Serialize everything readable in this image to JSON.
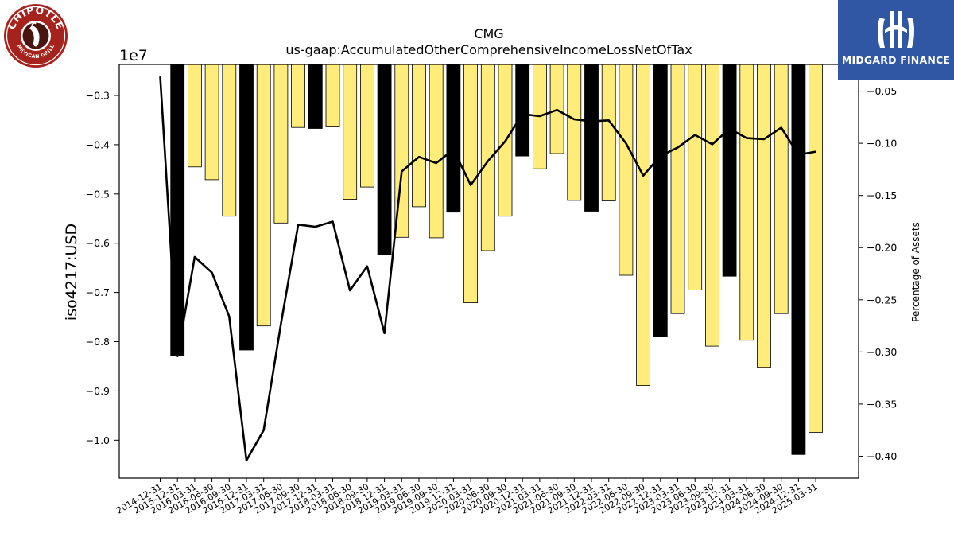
{
  "brand": {
    "left_logo_text": "CHIPOTLE",
    "left_logo_subtext": "MEXICAN GRILL",
    "right_logo_text": "MIDGARD FINANCE",
    "colors": {
      "bar_yellow": "#ffec7a",
      "bar_black": "#000000",
      "line": "#000000",
      "midgard_blue": "#2f57a4",
      "chipotle_red": "#a5231c"
    }
  },
  "chart_data": {
    "type": "bar",
    "title": "CMG",
    "subtitle": "us-gaap:AccumulatedOtherComprehensiveIncomeLossNetOfTax",
    "ylabel": "iso4217:USD",
    "y2label": "Percentage of Assets",
    "y_scale_label": "1e7",
    "ylim": [
      -1.077,
      -0.237
    ],
    "y2lim": [
      -0.421,
      -0.0244
    ],
    "y_ticks": [
      -0.3,
      -0.4,
      -0.5,
      -0.6,
      -0.7,
      -0.8,
      -0.9,
      -1.0
    ],
    "y_tick_labels": [
      "−0.3",
      "−0.4",
      "−0.5",
      "−0.6",
      "−0.7",
      "−0.8",
      "−0.9",
      "−1.0"
    ],
    "y2_ticks": [
      -0.05,
      -0.1,
      -0.15,
      -0.2,
      -0.25,
      -0.3,
      -0.35,
      -0.4
    ],
    "y2_tick_labels": [
      "−0.05",
      "−0.10",
      "−0.15",
      "−0.20",
      "−0.25",
      "−0.30",
      "−0.35",
      "−0.40"
    ],
    "categories": [
      "2014-12-31",
      "2015-12-31",
      "2016-03-31",
      "2016-06-30",
      "2016-09-30",
      "2016-12-31",
      "2017-03-31",
      "2017-06-30",
      "2017-09-30",
      "2017-12-31",
      "2018-03-31",
      "2018-06-30",
      "2018-09-30",
      "2018-12-31",
      "2019-03-31",
      "2019-06-30",
      "2019-09-30",
      "2019-12-31",
      "2020-03-31",
      "2020-06-30",
      "2020-09-30",
      "2020-12-31",
      "2021-03-31",
      "2021-06-30",
      "2021-09-30",
      "2021-12-31",
      "2022-03-31",
      "2022-06-30",
      "2022-09-30",
      "2022-12-31",
      "2023-03-31",
      "2023-06-30",
      "2023-09-30",
      "2023-12-31",
      "2024-03-31",
      "2024-06-30",
      "2024-09-30",
      "2024-12-31",
      "2025-03-31"
    ],
    "series": [
      {
        "name": "",
        "kind": "bar",
        "axis": "left",
        "values": [
          null,
          -0.829,
          -0.445,
          -0.471,
          -0.545,
          -0.817,
          -0.768,
          -0.559,
          -0.365,
          -0.367,
          -0.364,
          -0.511,
          -0.486,
          -0.624,
          -0.588,
          -0.526,
          -0.589,
          -0.537,
          -0.721,
          -0.615,
          -0.545,
          -0.423,
          -0.449,
          -0.418,
          -0.513,
          -0.535,
          -0.514,
          -0.665,
          -0.889,
          -0.789,
          -0.743,
          -0.695,
          -0.809,
          -0.667,
          -0.797,
          -0.852,
          -0.743,
          -1.029,
          -0.984
        ],
        "highlight": [
          false,
          true,
          false,
          false,
          false,
          true,
          false,
          false,
          false,
          true,
          false,
          false,
          false,
          true,
          false,
          false,
          false,
          true,
          false,
          false,
          false,
          true,
          false,
          false,
          false,
          true,
          false,
          false,
          false,
          true,
          false,
          false,
          false,
          true,
          false,
          false,
          false,
          true,
          false
        ]
      },
      {
        "name": "",
        "kind": "line",
        "axis": "right",
        "values": [
          -0.036,
          -0.304,
          -0.209,
          -0.224,
          -0.266,
          -0.404,
          -0.375,
          -0.273,
          -0.178,
          -0.18,
          -0.175,
          -0.241,
          -0.218,
          -0.282,
          -0.127,
          -0.113,
          -0.119,
          -0.106,
          -0.14,
          -0.117,
          -0.098,
          -0.072,
          -0.074,
          -0.068,
          -0.077,
          -0.079,
          -0.078,
          -0.1,
          -0.131,
          -0.112,
          -0.104,
          -0.092,
          -0.101,
          -0.086,
          -0.095,
          -0.096,
          -0.085,
          -0.111,
          -0.108
        ]
      }
    ]
  }
}
